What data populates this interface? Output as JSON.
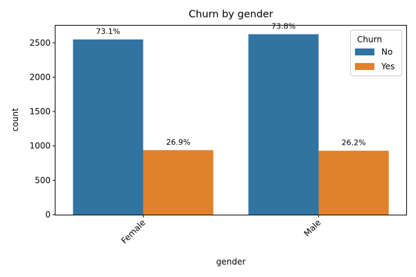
{
  "chart_data": {
    "type": "bar",
    "title": "Churn by gender",
    "xlabel": "gender",
    "ylabel": "count",
    "categories": [
      "Female",
      "Male"
    ],
    "ylim": [
      0,
      2750
    ],
    "yticks": [
      0,
      500,
      1000,
      1500,
      2000,
      2500
    ],
    "grid": false,
    "legend": {
      "title": "Churn",
      "placement": "top-right"
    },
    "series": [
      {
        "name": "No",
        "color": "#3274a1",
        "values": [
          2549,
          2625
        ],
        "labels": [
          "73.1%",
          "73.8%"
        ]
      },
      {
        "name": "Yes",
        "color": "#e1812c",
        "values": [
          939,
          930
        ],
        "labels": [
          "26.9%",
          "26.2%"
        ]
      }
    ]
  }
}
